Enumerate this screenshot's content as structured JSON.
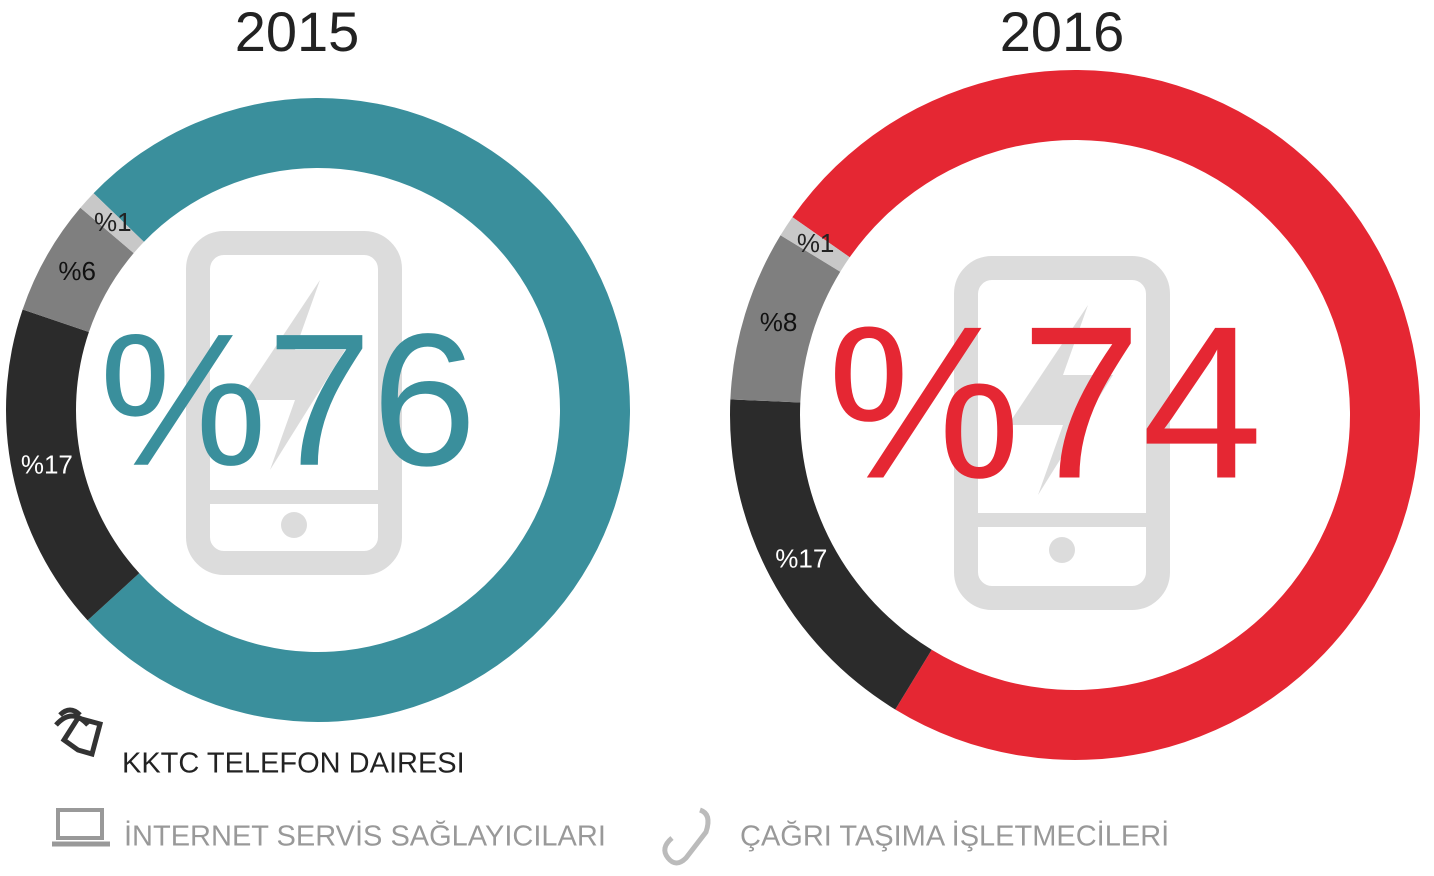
{
  "chart_data": [
    {
      "type": "donut",
      "title": "2015",
      "values": [
        76,
        17,
        6,
        1
      ],
      "value_labels": [
        "%76",
        "%17",
        "%6",
        "%1"
      ],
      "colors": [
        "#3a8f9c",
        "#2b2b2b",
        "#7f7f7f",
        "#c8c8c8"
      ]
    },
    {
      "type": "donut",
      "title": "2016",
      "values": [
        74,
        17,
        8,
        1
      ],
      "value_labels": [
        "%74",
        "%17",
        "%8",
        "%1"
      ],
      "colors": [
        "#e52733",
        "#2b2b2b",
        "#7f7f7f",
        "#c8c8c8"
      ]
    }
  ],
  "legend": [
    "KKTC TELEFON DAIRESI",
    "İNTERNET SERVİS SAĞLAYICILARI",
    "ÇAĞRI TAŞIMA İŞLETMECİLERİ"
  ]
}
